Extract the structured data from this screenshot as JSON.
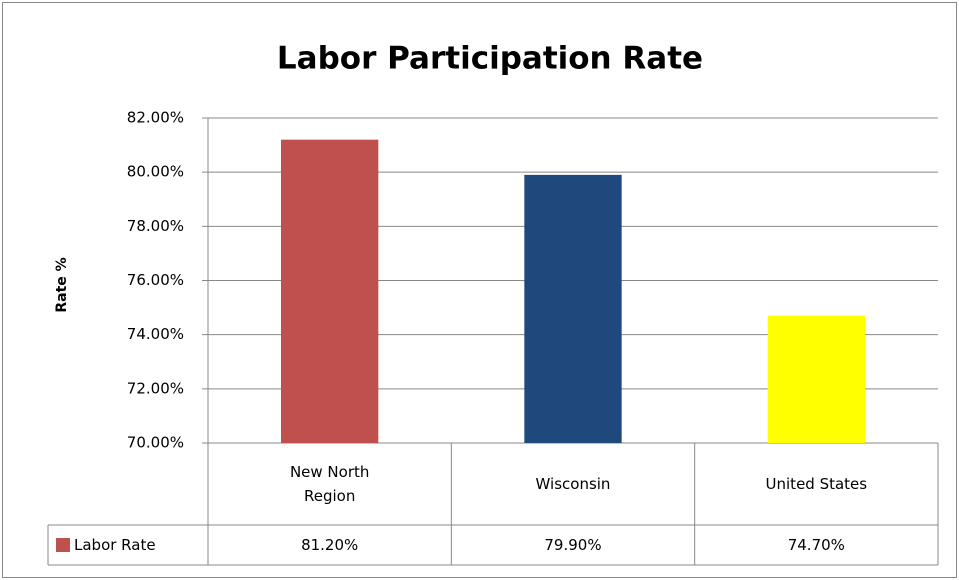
{
  "chart_data": {
    "type": "bar",
    "title": "Labor Participation Rate",
    "y_label": "Rate %",
    "categories": [
      "New North Region",
      "Wisconsin",
      "United States"
    ],
    "series": [
      {
        "name": "Labor Rate",
        "colors": [
          "#c0504d",
          "#1f497d",
          "#ffff00"
        ],
        "values": [
          81.2,
          79.9,
          74.7
        ],
        "value_labels": [
          "81.20%",
          "79.90%",
          "74.70%"
        ]
      }
    ],
    "ylim": [
      70,
      82
    ],
    "yticks": [
      {
        "value": 70,
        "label": "70.00%"
      },
      {
        "value": 72,
        "label": "72.00%"
      },
      {
        "value": 74,
        "label": "74.00%"
      },
      {
        "value": 76,
        "label": "76.00%"
      },
      {
        "value": 78,
        "label": "78.00%"
      },
      {
        "value": 80,
        "label": "80.00%"
      },
      {
        "value": 82,
        "label": "82.00%"
      }
    ],
    "grid": true,
    "legend": "data-table"
  }
}
